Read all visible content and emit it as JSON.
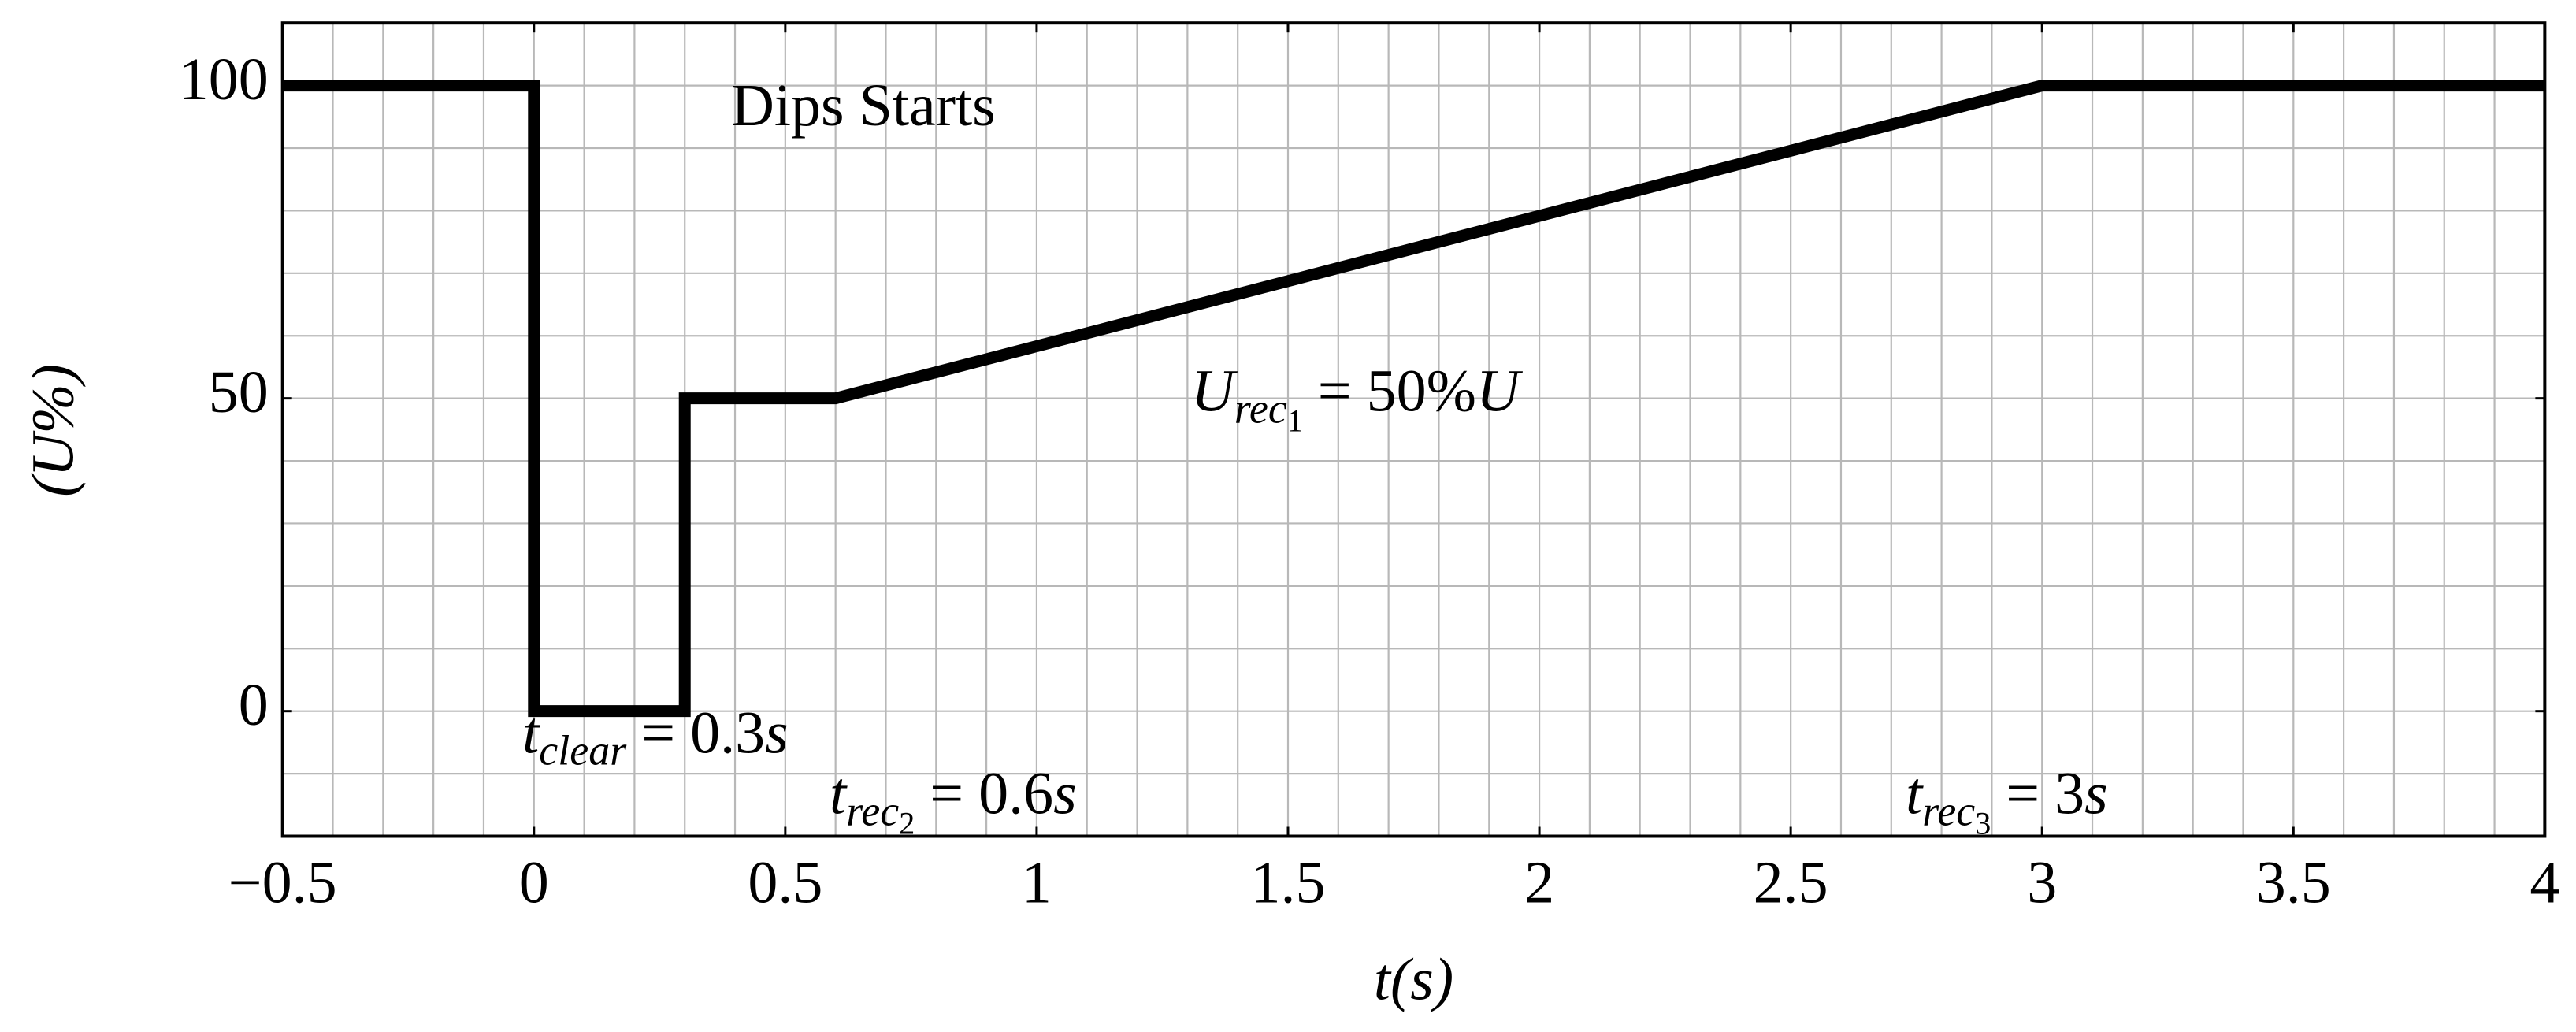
{
  "chart_data": {
    "type": "line",
    "x_label": "t(s)",
    "y_label": "(U%)",
    "x": [
      -0.5,
      0,
      0,
      0.3,
      0.3,
      0.6,
      3,
      4
    ],
    "series": [
      {
        "color": "#000000",
        "values": [
          100,
          100,
          0,
          0,
          50,
          50,
          100,
          100
        ]
      }
    ],
    "xlim": [
      -0.5,
      4
    ],
    "ylim": [
      -20,
      110
    ],
    "xticks": [
      {
        "value": -0.5,
        "label": "−0.5"
      },
      0,
      0.5,
      1,
      1.5,
      2,
      2.5,
      3,
      3.5,
      4
    ],
    "yticks": [
      0,
      50,
      100
    ],
    "grid": true,
    "xgrid": [
      -0.5,
      -0.4,
      -0.3,
      -0.2,
      -0.1,
      0,
      0.1,
      0.2,
      0.3,
      0.4,
      0.5,
      0.6,
      0.7,
      0.8,
      0.9,
      1,
      1.1,
      1.2,
      1.3,
      1.4,
      1.5,
      1.6,
      1.7,
      1.8,
      1.9,
      2,
      2.1,
      2.2,
      2.3,
      2.4,
      2.5,
      2.6,
      2.7,
      2.8,
      2.9,
      3,
      3.1,
      3.2,
      3.3,
      3.4,
      3.5,
      3.6,
      3.7,
      3.8,
      3.9,
      4
    ],
    "ygrid": [
      -20,
      -10,
      0,
      10,
      20,
      30,
      40,
      50,
      60,
      70,
      80,
      90,
      100,
      110
    ],
    "annotations": [
      [
        {
          "text": "Dips Starts"
        }
      ],
      [
        {
          "text": "U",
          "italic": true
        },
        {
          "text": "rec",
          "italic": true,
          "sub": 1
        },
        {
          "text": "1",
          "sub": 2
        },
        {
          "text": " = 50%"
        },
        {
          "text": "U",
          "italic": true
        }
      ],
      [
        {
          "text": "t",
          "italic": true
        },
        {
          "text": "clear",
          "italic": true,
          "sub": 1
        },
        {
          "text": " = 0.3"
        },
        {
          "text": "s",
          "italic": true
        }
      ],
      [
        {
          "text": "t",
          "italic": true
        },
        {
          "text": "rec",
          "italic": true,
          "sub": 1
        },
        {
          "text": "2",
          "sub": 2
        },
        {
          "text": " = 0.6"
        },
        {
          "text": "s",
          "italic": true
        }
      ],
      [
        {
          "text": "t",
          "italic": true
        },
        {
          "text": "rec",
          "italic": true,
          "sub": 1
        },
        {
          "text": "3",
          "sub": 2
        },
        {
          "text": " = 3"
        },
        {
          "text": "s",
          "italic": true
        }
      ]
    ]
  }
}
